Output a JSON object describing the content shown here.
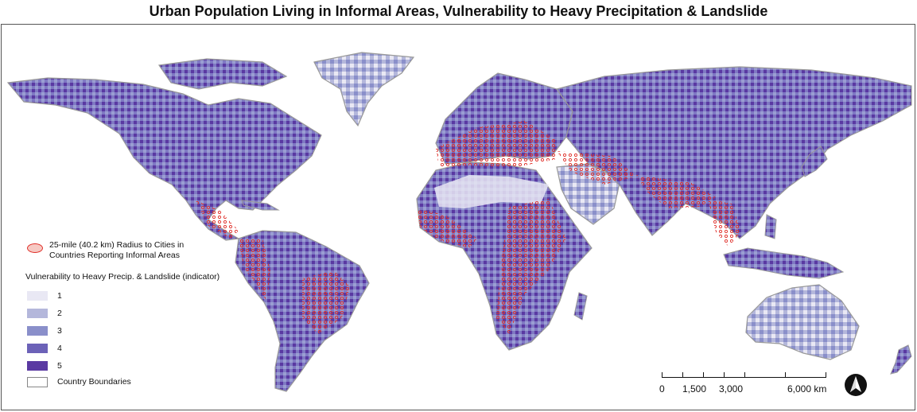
{
  "title": "Urban Population Living in Informal Areas, Vulnerability to Heavy Precipitation & Landslide",
  "legend": {
    "radius_label_line1": "25-mile (40.2 km) Radius to Cities in",
    "radius_label_line2": "Countries Reporting Informal Areas",
    "radius_fill": "#f6c9c3",
    "radius_stroke": "#e0312b",
    "vulnerability_heading": "Vulnerability to Heavy Precip. & Landslide (indicator)",
    "classes": [
      {
        "label": "1",
        "color": "#e9e8f4"
      },
      {
        "label": "2",
        "color": "#b4b7db"
      },
      {
        "label": "3",
        "color": "#8a8fca"
      },
      {
        "label": "4",
        "color": "#6c62b8"
      },
      {
        "label": "5",
        "color": "#5a39a2"
      }
    ],
    "boundaries_label": "Country Boundaries",
    "boundary_color": "#999999"
  },
  "scale_bar": {
    "labels": [
      "0",
      "1,500",
      "3,000",
      "6,000 km"
    ]
  },
  "north_arrow": {
    "icon": "north-arrow-icon"
  }
}
